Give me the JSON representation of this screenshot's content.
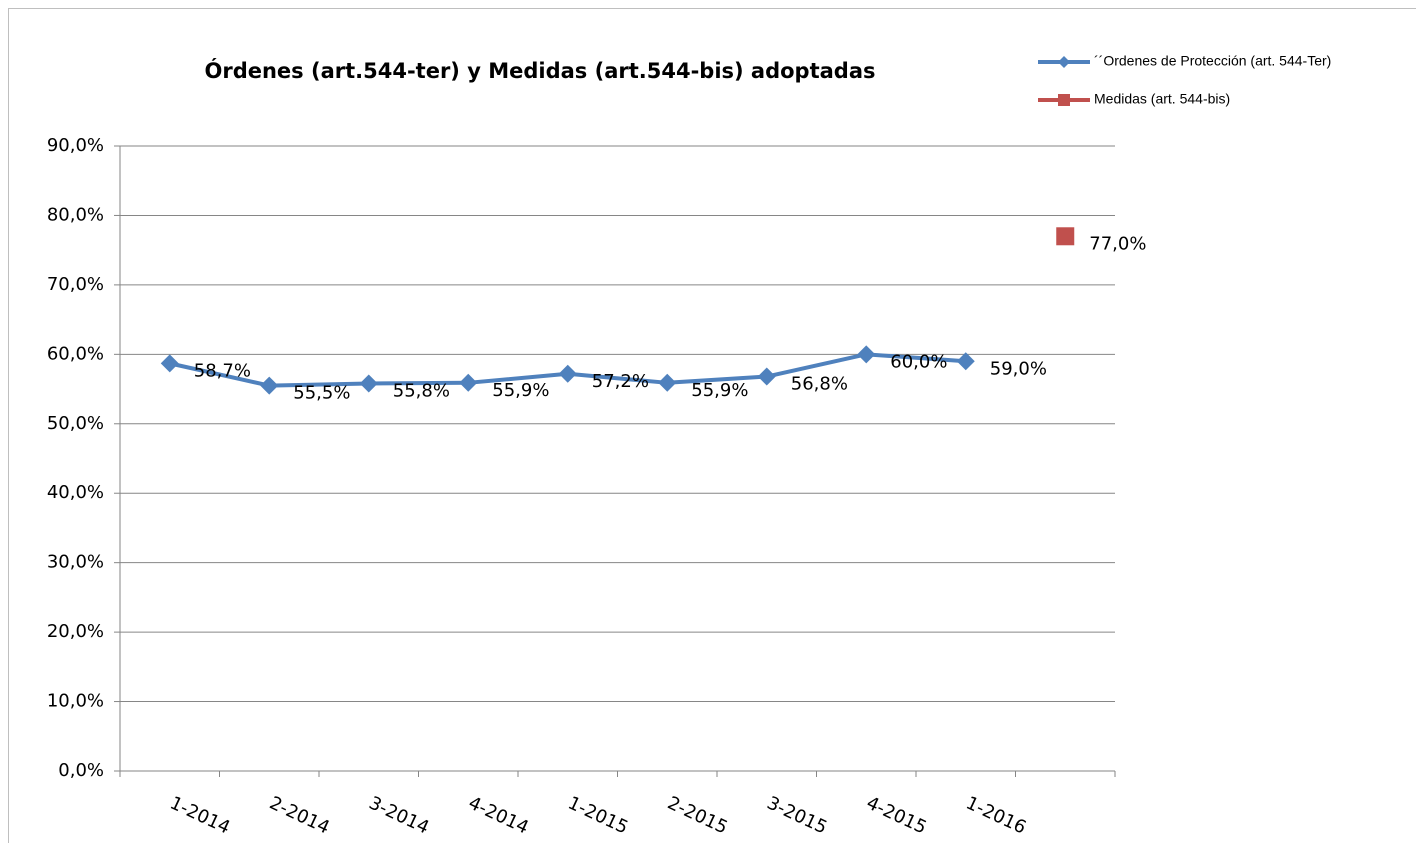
{
  "chart_data": {
    "type": "line",
    "title": "Órdenes  (art.544-ter) y Medidas (art.544-bis) adoptadas",
    "categories": [
      "1-2014",
      "2-2014",
      "3-2014",
      "4-2014",
      "1-2015",
      "2-2015",
      "3-2015",
      "4-2015",
      "1-2016",
      null
    ],
    "series": [
      {
        "name": "´´Ordenes de Protección (art. 544-Ter)",
        "color": "#4f81bd",
        "marker": "diamond",
        "values": [
          58.7,
          55.5,
          55.8,
          55.9,
          57.2,
          55.9,
          56.8,
          60.0,
          59.0,
          null
        ],
        "value_labels": [
          "58,7%",
          "55,5%",
          "55,8%",
          "55,9%",
          "57,2%",
          "55,9%",
          "56,8%",
          "60,0%",
          "59,0%",
          null
        ]
      },
      {
        "name": "Medidas (art. 544-bis)",
        "color": "#c0504d",
        "marker": "square",
        "values": [
          null,
          null,
          null,
          null,
          null,
          null,
          null,
          null,
          null,
          77.0
        ],
        "value_labels": [
          null,
          null,
          null,
          null,
          null,
          null,
          null,
          null,
          null,
          "77,0%"
        ]
      }
    ],
    "ylim": [
      0,
      90
    ],
    "yticks": [
      {
        "value": 0,
        "label": "0,0%"
      },
      {
        "value": 10,
        "label": "10,0%"
      },
      {
        "value": 20,
        "label": "20,0%"
      },
      {
        "value": 30,
        "label": "30,0%"
      },
      {
        "value": 40,
        "label": "40,0%"
      },
      {
        "value": 50,
        "label": "50,0%"
      },
      {
        "value": 60,
        "label": "60,0%"
      },
      {
        "value": 70,
        "label": "70,0%"
      },
      {
        "value": 80,
        "label": "80,0%"
      },
      {
        "value": 90,
        "label": "90,0%"
      }
    ],
    "grid": true,
    "legend": "top-right"
  }
}
